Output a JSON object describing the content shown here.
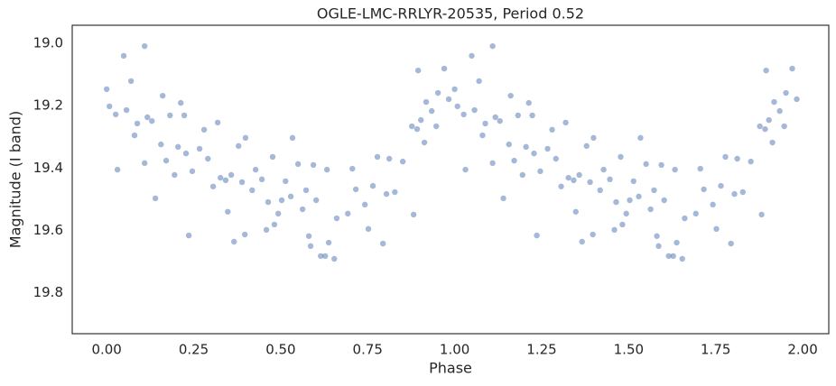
{
  "chart_data": {
    "type": "scatter",
    "title": "OGLE-LMC-RRLYR-20535, Period 0.52",
    "xlabel": "Phase",
    "ylabel": "Magnitude (I band)",
    "color": "#4c72b0",
    "invert_y": true,
    "grid": false,
    "xlim": [
      -0.099,
      2.075
    ],
    "ylim": [
      18.942,
      19.931
    ],
    "xticks": [
      {
        "value": 0,
        "label": "0.00"
      },
      {
        "value": 0.25,
        "label": "0.25"
      },
      {
        "value": 0.5,
        "label": "0.50"
      },
      {
        "value": 0.75,
        "label": "0.75"
      },
      {
        "value": 1,
        "label": "1.00"
      },
      {
        "value": 1.25,
        "label": "1.25"
      },
      {
        "value": 1.5,
        "label": "1.50"
      },
      {
        "value": 1.75,
        "label": "1.75"
      },
      {
        "value": 2,
        "label": "2.00"
      }
    ],
    "yticks": [
      {
        "value": 19,
        "label": "19.0"
      },
      19.2,
      19.4,
      19.6,
      19.8
    ],
    "x": [
      0.0,
      0.008,
      0.026,
      0.031,
      0.049,
      0.057,
      0.07,
      0.08,
      0.088,
      0.109,
      0.109,
      0.117,
      0.13,
      0.14,
      0.156,
      0.161,
      0.171,
      0.182,
      0.195,
      0.205,
      0.213,
      0.223,
      0.228,
      0.236,
      0.246,
      0.267,
      0.28,
      0.291,
      0.306,
      0.319,
      0.327,
      0.342,
      0.348,
      0.358,
      0.366,
      0.379,
      0.389,
      0.397,
      0.399,
      0.418,
      0.428,
      0.446,
      0.459,
      0.464,
      0.477,
      0.482,
      0.493,
      0.503,
      0.514,
      0.529,
      0.534,
      0.55,
      0.563,
      0.573,
      0.581,
      0.586,
      0.594,
      0.602,
      0.615,
      0.628,
      0.633,
      0.638,
      0.654,
      0.661,
      0.693,
      0.706,
      0.716,
      0.742,
      0.752,
      0.765,
      0.778,
      0.794,
      0.804,
      0.812,
      0.828,
      0.851,
      0.877,
      0.882,
      0.892,
      0.895,
      0.903,
      0.913,
      0.918,
      0.934,
      0.947,
      0.952,
      0.97,
      0.983,
      1.0,
      1.008,
      1.026,
      1.031,
      1.049,
      1.057,
      1.07,
      1.08,
      1.088,
      1.109,
      1.109,
      1.117,
      1.13,
      1.14,
      1.156,
      1.161,
      1.171,
      1.182,
      1.195,
      1.205,
      1.213,
      1.223,
      1.228,
      1.236,
      1.246,
      1.267,
      1.28,
      1.291,
      1.306,
      1.319,
      1.327,
      1.342,
      1.348,
      1.358,
      1.366,
      1.379,
      1.389,
      1.397,
      1.399,
      1.418,
      1.428,
      1.446,
      1.459,
      1.464,
      1.477,
      1.482,
      1.493,
      1.503,
      1.514,
      1.529,
      1.534,
      1.55,
      1.563,
      1.573,
      1.581,
      1.586,
      1.594,
      1.602,
      1.615,
      1.628,
      1.633,
      1.638,
      1.654,
      1.661,
      1.693,
      1.706,
      1.716,
      1.742,
      1.752,
      1.765,
      1.778,
      1.794,
      1.804,
      1.812,
      1.828,
      1.851,
      1.877,
      1.882,
      1.892,
      1.895,
      1.903,
      1.913,
      1.918,
      1.934,
      1.947,
      1.952,
      1.97,
      1.983
    ],
    "y": [
      19.147,
      19.202,
      19.228,
      19.405,
      19.04,
      19.214,
      19.121,
      19.295,
      19.257,
      19.009,
      19.384,
      19.237,
      19.249,
      19.497,
      19.324,
      19.168,
      19.376,
      19.231,
      19.422,
      19.332,
      19.191,
      19.231,
      19.353,
      19.616,
      19.41,
      19.338,
      19.277,
      19.37,
      19.459,
      19.254,
      19.431,
      19.439,
      19.54,
      19.422,
      19.636,
      19.329,
      19.445,
      19.613,
      19.303,
      19.471,
      19.405,
      19.436,
      19.598,
      19.509,
      19.364,
      19.581,
      19.546,
      19.503,
      19.442,
      19.491,
      19.303,
      19.387,
      19.532,
      19.471,
      19.618,
      19.65,
      19.39,
      19.503,
      19.682,
      19.682,
      19.405,
      19.639,
      19.691,
      19.561,
      19.546,
      19.402,
      19.468,
      19.517,
      19.595,
      19.457,
      19.364,
      19.642,
      19.483,
      19.37,
      19.477,
      19.379,
      19.266,
      19.549,
      19.275,
      19.087,
      19.246,
      19.318,
      19.188,
      19.217,
      19.266,
      19.159,
      19.081,
      19.179,
      19.147,
      19.202,
      19.228,
      19.405,
      19.04,
      19.214,
      19.121,
      19.295,
      19.257,
      19.009,
      19.384,
      19.237,
      19.249,
      19.497,
      19.324,
      19.168,
      19.376,
      19.231,
      19.422,
      19.332,
      19.191,
      19.231,
      19.353,
      19.616,
      19.41,
      19.338,
      19.277,
      19.37,
      19.459,
      19.254,
      19.431,
      19.439,
      19.54,
      19.422,
      19.636,
      19.329,
      19.445,
      19.613,
      19.303,
      19.471,
      19.405,
      19.436,
      19.598,
      19.509,
      19.364,
      19.581,
      19.546,
      19.503,
      19.442,
      19.491,
      19.303,
      19.387,
      19.532,
      19.471,
      19.618,
      19.65,
      19.39,
      19.503,
      19.682,
      19.682,
      19.405,
      19.639,
      19.691,
      19.561,
      19.546,
      19.402,
      19.468,
      19.517,
      19.595,
      19.457,
      19.364,
      19.642,
      19.483,
      19.37,
      19.477,
      19.379,
      19.266,
      19.549,
      19.275,
      19.087,
      19.246,
      19.318,
      19.188,
      19.217,
      19.266,
      19.159,
      19.081,
      19.179
    ]
  }
}
